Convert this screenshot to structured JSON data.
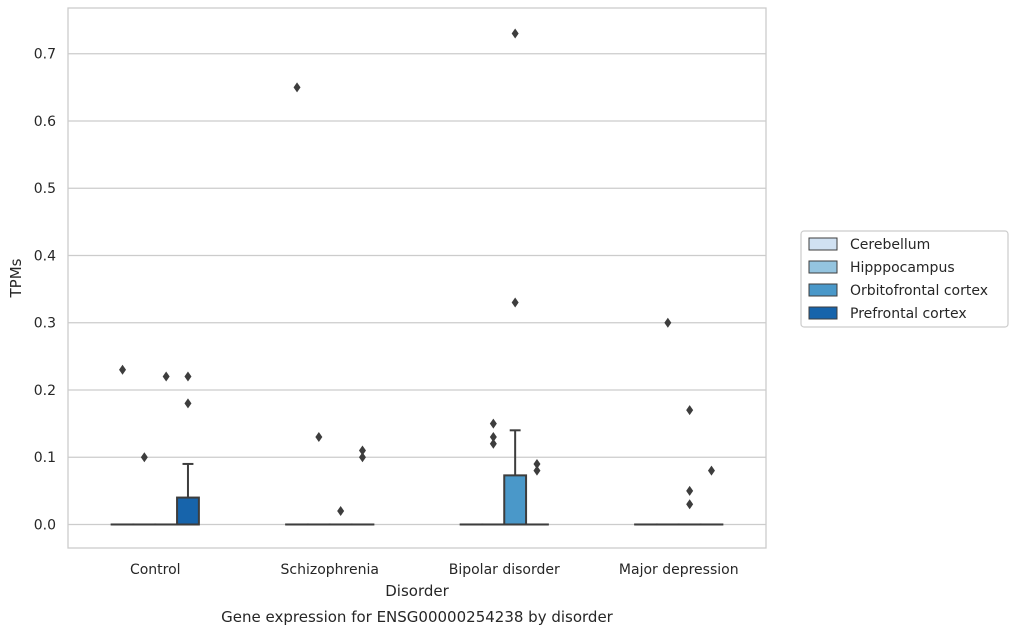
{
  "chart_data": {
    "type": "box",
    "xlabel": "Disorder",
    "ylabel": "TPMs",
    "caption": "Gene expression for ENSG00000254238 by disorder",
    "ylim": [
      -0.035,
      0.768
    ],
    "yticks": [
      "0.0",
      "0.1",
      "0.2",
      "0.3",
      "0.4",
      "0.5",
      "0.6",
      "0.7"
    ],
    "grid": "horizontal",
    "legend_position": "right",
    "categories": [
      "Control",
      "Schizophrenia",
      "Bipolar disorder",
      "Major depression"
    ],
    "series": [
      {
        "name": "Cerebellum",
        "color": "#d0e1f2",
        "boxes": [
          {
            "category": "Control",
            "q1": 0,
            "median": 0,
            "q3": 0,
            "whislo": 0,
            "whishi": 0,
            "fliers": [
              0.23
            ]
          },
          {
            "category": "Schizophrenia",
            "q1": 0,
            "median": 0,
            "q3": 0,
            "whislo": 0,
            "whishi": 0,
            "fliers": [
              0.65
            ]
          },
          {
            "category": "Bipolar disorder",
            "q1": 0,
            "median": 0,
            "q3": 0,
            "whislo": 0,
            "whishi": 0,
            "fliers": []
          },
          {
            "category": "Major depression",
            "q1": 0,
            "median": 0,
            "q3": 0,
            "whislo": 0,
            "whishi": 0,
            "fliers": []
          }
        ]
      },
      {
        "name": "Hipppocampus",
        "color": "#94c4df",
        "boxes": [
          {
            "category": "Control",
            "q1": 0,
            "median": 0,
            "q3": 0,
            "whislo": 0,
            "whishi": 0,
            "fliers": [
              0.1
            ]
          },
          {
            "category": "Schizophrenia",
            "q1": 0,
            "median": 0,
            "q3": 0,
            "whislo": 0,
            "whishi": 0,
            "fliers": [
              0.13
            ]
          },
          {
            "category": "Bipolar disorder",
            "q1": 0,
            "median": 0,
            "q3": 0,
            "whislo": 0,
            "whishi": 0,
            "fliers": [
              0.15,
              0.13,
              0.12
            ]
          },
          {
            "category": "Major depression",
            "q1": 0,
            "median": 0,
            "q3": 0,
            "whislo": 0,
            "whishi": 0,
            "fliers": [
              0.3
            ]
          }
        ]
      },
      {
        "name": "Orbitofrontal cortex",
        "color": "#4a98c9",
        "boxes": [
          {
            "category": "Control",
            "q1": 0,
            "median": 0,
            "q3": 0,
            "whislo": 0,
            "whishi": 0,
            "fliers": [
              0.22
            ]
          },
          {
            "category": "Schizophrenia",
            "q1": 0,
            "median": 0,
            "q3": 0,
            "whislo": 0,
            "whishi": 0,
            "fliers": [
              0.02
            ]
          },
          {
            "category": "Bipolar disorder",
            "q1": 0,
            "median": 0,
            "q3": 0.073,
            "whislo": 0,
            "whishi": 0.14,
            "fliers": [
              0.73,
              0.33
            ]
          },
          {
            "category": "Major depression",
            "q1": 0,
            "median": 0,
            "q3": 0,
            "whislo": 0,
            "whishi": 0,
            "fliers": [
              0.17,
              0.05,
              0.03
            ]
          }
        ]
      },
      {
        "name": "Prefrontal cortex",
        "color": "#1764ab",
        "boxes": [
          {
            "category": "Control",
            "q1": 0,
            "median": 0,
            "q3": 0.04,
            "whislo": 0,
            "whishi": 0.09,
            "fliers": [
              0.22,
              0.18
            ]
          },
          {
            "category": "Schizophrenia",
            "q1": 0,
            "median": 0,
            "q3": 0,
            "whislo": 0,
            "whishi": 0,
            "fliers": [
              0.11,
              0.1
            ]
          },
          {
            "category": "Bipolar disorder",
            "q1": 0,
            "median": 0,
            "q3": 0,
            "whislo": 0,
            "whishi": 0,
            "fliers": [
              0.09,
              0.08
            ]
          },
          {
            "category": "Major depression",
            "q1": 0,
            "median": 0,
            "q3": 0,
            "whislo": 0,
            "whishi": 0,
            "fliers": [
              0.08
            ]
          }
        ]
      }
    ]
  }
}
